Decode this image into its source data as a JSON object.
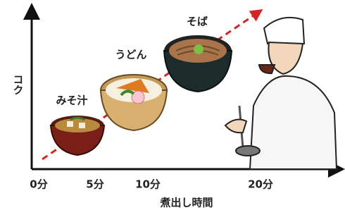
{
  "axes": {
    "y_label": "コク",
    "x_label": "煮出し時間",
    "x_ticks": [
      "0分",
      "5分",
      "10分",
      "20分"
    ]
  },
  "items": [
    {
      "label": "みそ汁"
    },
    {
      "label": "うどん"
    },
    {
      "label": "そば"
    }
  ]
}
